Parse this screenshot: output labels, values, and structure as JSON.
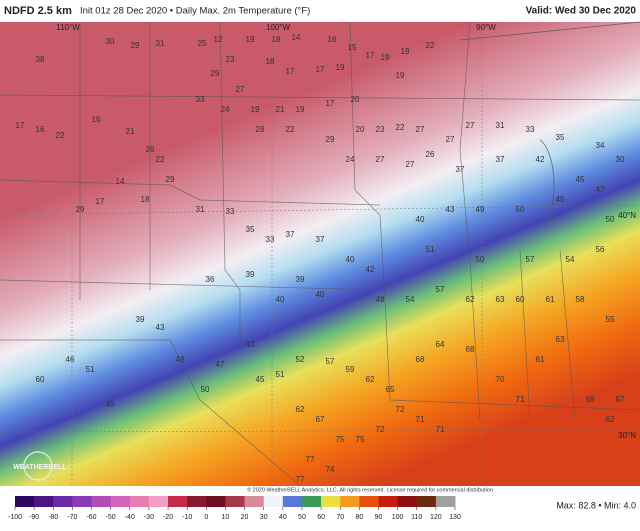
{
  "header": {
    "model": "NDFD 2.5 km",
    "description": "Init 01z 28 Dec 2020 • Daily Max. 2m Temperature (°F)",
    "valid": "Valid: Wed 30 Dec 2020"
  },
  "map": {
    "lon_labels": [
      "110°W",
      "100°W",
      "90°W"
    ],
    "lat_labels": [
      "40°N",
      "30°N"
    ],
    "logo": "WEATHERBELL",
    "labels": [
      30,
      29,
      31,
      25,
      12,
      19,
      18,
      14,
      16,
      15,
      17,
      19,
      19,
      22,
      19,
      23,
      18,
      17,
      17,
      19,
      29,
      27,
      33,
      24,
      19,
      21,
      19,
      17,
      20,
      28,
      22,
      29,
      20,
      23,
      22,
      27,
      24,
      27,
      27,
      26,
      27,
      27,
      31,
      33,
      35,
      34,
      30,
      38,
      17,
      16,
      22,
      16,
      21,
      26,
      22,
      29,
      14,
      29,
      17,
      18,
      31,
      33,
      35,
      33,
      37,
      37,
      40,
      42,
      39,
      40,
      39,
      40,
      36,
      60,
      46,
      51,
      49,
      39,
      43,
      48,
      50,
      47,
      43,
      45,
      51,
      52,
      57,
      59,
      62,
      65,
      68,
      64,
      68,
      70,
      71,
      61,
      63,
      68,
      62,
      67,
      62,
      67,
      75,
      75,
      72,
      72,
      71,
      71,
      77,
      74,
      77,
      48,
      54,
      57,
      62,
      63,
      60,
      61,
      58,
      55,
      40,
      43,
      49,
      50,
      45,
      47,
      50,
      56,
      54,
      57,
      50,
      51,
      37,
      37,
      42,
      45
    ]
  },
  "footer": {
    "copyright": "© 2020 WeatherBELL Analytics, LLC. All rights reserved. License required for commercial distribution",
    "stats": "Max: 82.8 • Min: 4.0"
  },
  "colorbar": {
    "ticks": [
      -100,
      -90,
      -80,
      -70,
      -60,
      -50,
      -40,
      -30,
      -20,
      -10,
      0,
      10,
      20,
      30,
      40,
      50,
      60,
      70,
      80,
      90,
      100,
      110,
      120,
      130
    ],
    "colors": [
      "#2a0a5e",
      "#4b1585",
      "#6a2aa8",
      "#8b3ab5",
      "#b04bb8",
      "#d363b8",
      "#e47fb0",
      "#f0a1c3",
      "#c42a4a",
      "#8a1830",
      "#6a1020",
      "#a83848",
      "#d88a98",
      "#eef4f8",
      "#5a78d8",
      "#3c9a5a",
      "#e8e040",
      "#f59a20",
      "#e85010",
      "#c81e10",
      "#901010",
      "#6a2a10",
      "#a0a0a0"
    ]
  }
}
